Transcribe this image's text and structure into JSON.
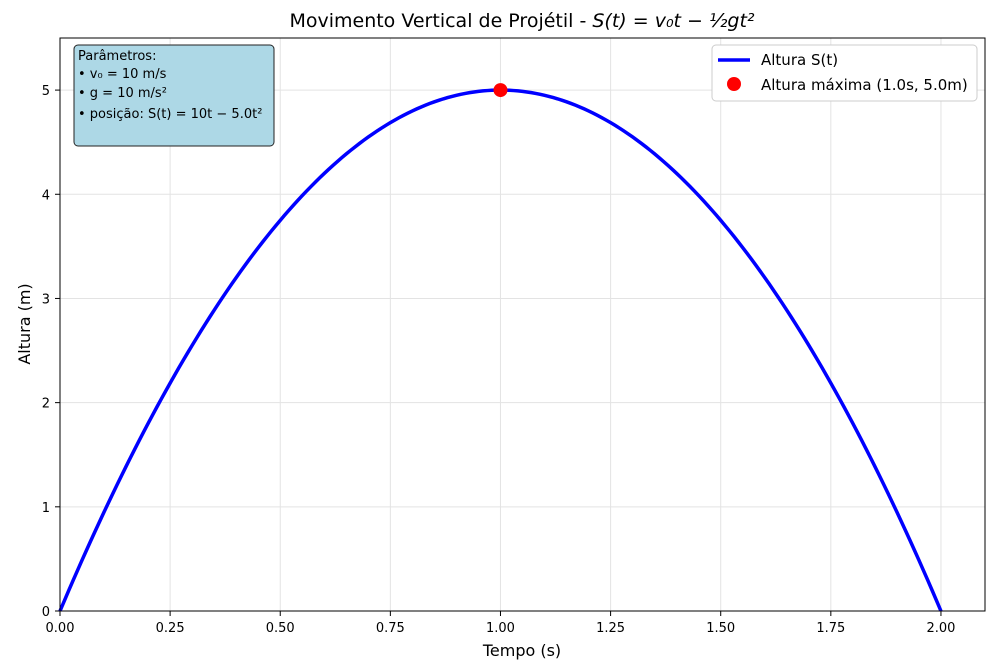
{
  "chart_data": {
    "type": "line",
    "title_prefix": "Movimento Vertical de Projétil - ",
    "title_formula": "S(t) = v₀t − ½gt²",
    "xlabel": "Tempo (s)",
    "ylabel": "Altura (m)",
    "xlim": [
      0,
      2.1
    ],
    "ylim": [
      0,
      5.5
    ],
    "xticks": [
      0.0,
      0.25,
      0.5,
      0.75,
      1.0,
      1.25,
      1.5,
      1.75,
      2.0
    ],
    "xtick_labels": [
      "0.00",
      "0.25",
      "0.50",
      "0.75",
      "1.00",
      "1.25",
      "1.50",
      "1.75",
      "2.00"
    ],
    "yticks": [
      0,
      1,
      2,
      3,
      4,
      5
    ],
    "ytick_labels": [
      "0",
      "1",
      "2",
      "3",
      "4",
      "5"
    ],
    "grid": true,
    "legend_position": "top-right",
    "series": [
      {
        "name": "Altura S(t)",
        "color": "#0000ff",
        "equation": {
          "v0": 10,
          "g": 10,
          "t_start": 0,
          "t_end": 2
        },
        "x": [
          0,
          0.1,
          0.2,
          0.3,
          0.4,
          0.5,
          0.6,
          0.7,
          0.8,
          0.9,
          1.0,
          1.1,
          1.2,
          1.3,
          1.4,
          1.5,
          1.6,
          1.7,
          1.8,
          1.9,
          2.0
        ],
        "y": [
          0,
          0.95,
          1.8,
          2.55,
          3.2,
          3.75,
          4.2,
          4.55,
          4.8,
          4.95,
          5.0,
          4.95,
          4.8,
          4.55,
          4.2,
          3.75,
          3.2,
          2.55,
          1.8,
          0.95,
          0
        ]
      }
    ],
    "marker": {
      "name": "Altura máxima (1.0s, 5.0m)",
      "x": 1.0,
      "y": 5.0,
      "color": "#ff0000"
    },
    "parameters": {
      "heading": "Parâmetros:",
      "lines": [
        "• v₀ = 10 m/s",
        "• g = 10 m/s²",
        "• posição: S(t) = 10t − 5.0t²"
      ],
      "background": "#add8e6"
    }
  }
}
